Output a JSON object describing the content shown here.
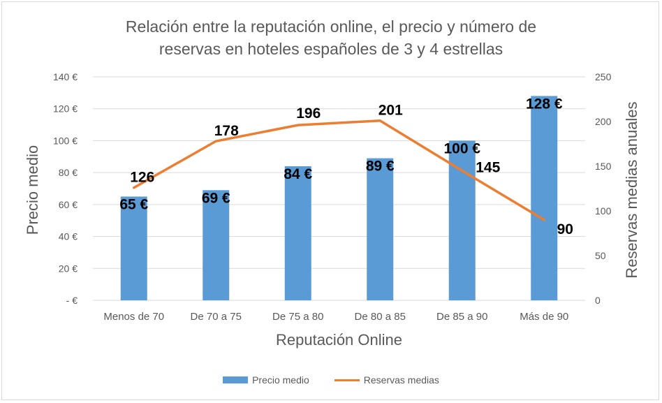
{
  "chart_data": {
    "type": "bar",
    "title_lines": [
      "Relación entre la reputación online, el precio y número de",
      "reservas en hoteles españoles de 3 y 4 estrellas"
    ],
    "xlabel": "Reputación Online",
    "ylabel": "Precio medio",
    "y2label": "Reservas medias anuales",
    "categories": [
      "Menos de 70",
      "De 70 a 75",
      "De 75 a 80",
      "De 80 a 85",
      "De 85 a 90",
      "Más de 90"
    ],
    "series": [
      {
        "name": "Precio medio",
        "type": "bar",
        "axis": "left",
        "color": "#5b9bd5",
        "values": [
          65,
          69,
          84,
          89,
          100,
          128
        ],
        "data_labels": [
          "65 €",
          "69 €",
          "84 €",
          "89 €",
          "100 €",
          "128 €"
        ]
      },
      {
        "name": "Reservas medias",
        "type": "line",
        "axis": "right",
        "color": "#ed7d31",
        "values": [
          126,
          178,
          196,
          201,
          145,
          90
        ],
        "data_labels": [
          "126",
          "178",
          "196",
          "201",
          "145",
          "90"
        ]
      }
    ],
    "ylim": [
      0,
      140
    ],
    "y2lim": [
      0,
      250
    ],
    "yticks": [
      0,
      20,
      40,
      60,
      80,
      100,
      120,
      140
    ],
    "ytick_labels": [
      "-  €",
      "20 €",
      "40 €",
      "60 €",
      "80 €",
      "100 €",
      "120 €",
      "140 €"
    ],
    "y2ticks": [
      0,
      50,
      100,
      150,
      200,
      250
    ],
    "y2tick_labels": [
      "0",
      "50",
      "100",
      "150",
      "200",
      "250"
    ],
    "grid": true,
    "legend_position": "bottom"
  }
}
